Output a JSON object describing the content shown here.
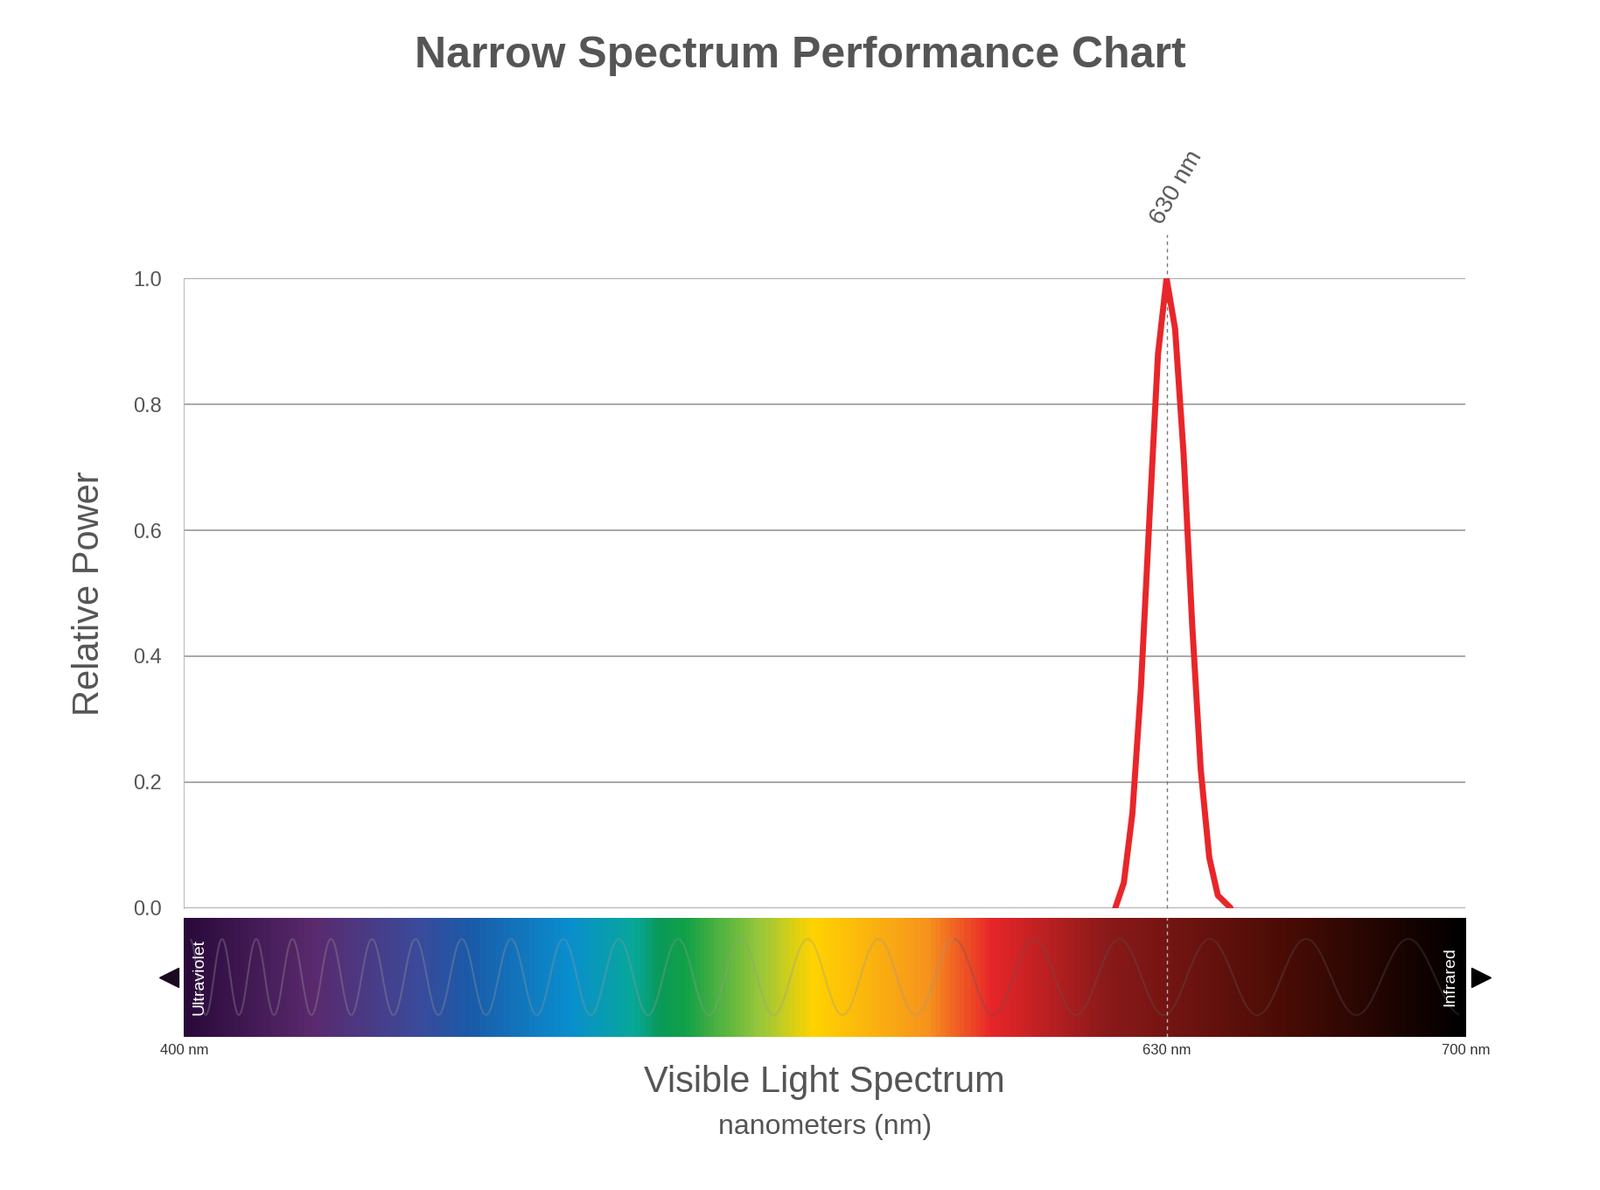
{
  "chart_data": {
    "type": "line",
    "title": "Narrow Spectrum Performance Chart",
    "x_label": "Visible Light Spectrum",
    "x_label_units": "nanometers (nm)",
    "y_label": "Relative Power",
    "x": [
      618,
      620,
      622,
      624,
      626,
      628,
      630,
      632,
      634,
      636,
      638,
      640,
      642,
      645
    ],
    "values": [
      0,
      0.04,
      0.15,
      0.35,
      0.62,
      0.88,
      1.0,
      0.92,
      0.72,
      0.45,
      0.22,
      0.08,
      0.02,
      0
    ],
    "color": "#e8262a",
    "xlim": [
      400,
      700
    ],
    "xticks": [
      {
        "value": 400,
        "label": "400 nm"
      },
      {
        "value": 630,
        "label": "630 nm"
      },
      {
        "value": 700,
        "label": "700 nm"
      }
    ],
    "ylim": [
      0,
      1
    ],
    "yticks": [
      {
        "value": 0,
        "label": "0.0"
      },
      0.2,
      0.4,
      0.6,
      0.8,
      {
        "value": 1,
        "label": "1.0"
      }
    ],
    "grid": true,
    "annotations": [
      {
        "x": 630,
        "text": "630 nm"
      }
    ],
    "spectrum_labels": {
      "left": "Ultraviolet",
      "right": "Infrared"
    }
  }
}
